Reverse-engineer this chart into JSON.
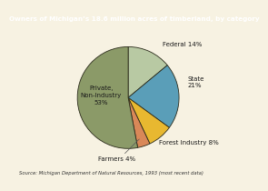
{
  "title": "Owners of Michigan’s 18.6 million acres of timberland, by category",
  "title_bg": "#3a6b9f",
  "title_color": "#ffffff",
  "background_color": "#f7f2e2",
  "source": "Source: Michigan Department of Natural Resources, 1993 (most recent data)",
  "slices": [
    {
      "label": "Federal 14%",
      "value": 14,
      "color": "#b8c9a3"
    },
    {
      "label": "State\n21%",
      "value": 21,
      "color": "#5a9eb8"
    },
    {
      "label": "Forest Industry 8%",
      "value": 8,
      "color": "#e8b830"
    },
    {
      "label": "Farmers 4%",
      "value": 4,
      "color": "#d98858"
    },
    {
      "label": "Private,\nNon-Industry\n53%",
      "value": 53,
      "color": "#8b9a68"
    }
  ],
  "edge_color": "#2a2a1a",
  "startangle": 90
}
